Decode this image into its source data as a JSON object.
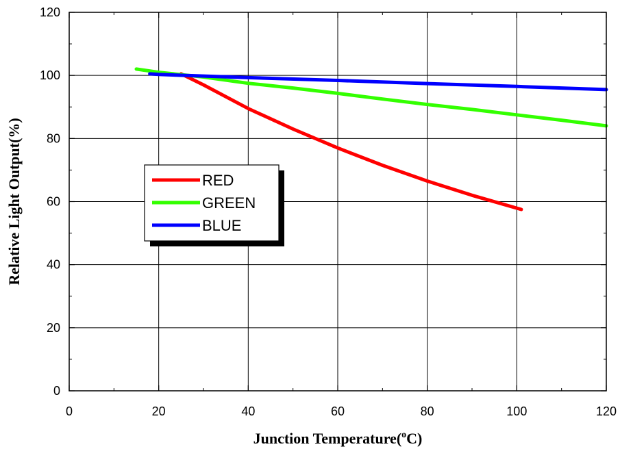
{
  "chart_data": {
    "type": "line",
    "xlabel": "Junction Temperature(",
    "xlabel_sup": "o",
    "xlabel_end": "C)",
    "ylabel": "Relative Light Output(%)",
    "xlim": [
      0,
      120
    ],
    "ylim": [
      0,
      120
    ],
    "x_ticks": [
      0,
      20,
      40,
      60,
      80,
      100,
      120
    ],
    "y_ticks": [
      0,
      20,
      40,
      60,
      80,
      100,
      120
    ],
    "grid": true,
    "legend_position": "center-left",
    "series": [
      {
        "name": "RED",
        "color": "#ff0000",
        "x": [
          25,
          30,
          40,
          50,
          60,
          70,
          80,
          90,
          101
        ],
        "y": [
          100.5,
          97,
          89.5,
          83,
          77,
          71.5,
          66.5,
          62,
          57.5
        ]
      },
      {
        "name": "GREEN",
        "color": "#33ff00",
        "x": [
          15,
          20,
          30,
          40,
          50,
          60,
          70,
          80,
          90,
          100,
          110,
          120
        ],
        "y": [
          102,
          101,
          99.5,
          97.5,
          96,
          94.3,
          92.5,
          90.8,
          89.2,
          87.5,
          85.8,
          84
        ]
      },
      {
        "name": "BLUE",
        "color": "#0000ff",
        "x": [
          18,
          20,
          40,
          60,
          80,
          100,
          120
        ],
        "y": [
          100.5,
          100.3,
          99.3,
          98.4,
          97.4,
          96.5,
          95.5
        ]
      }
    ]
  }
}
